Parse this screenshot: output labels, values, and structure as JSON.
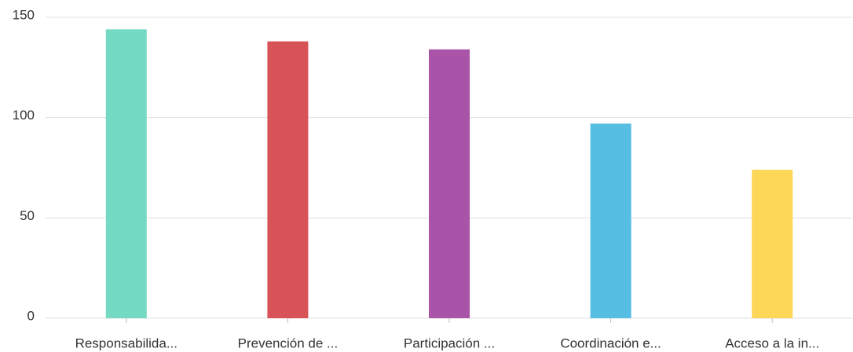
{
  "chart_data": {
    "type": "bar",
    "categories": [
      "Responsabilida...",
      "Prevención de ...",
      "Participación ...",
      "Coordinación e...",
      "Acceso a la in..."
    ],
    "values": [
      144,
      138,
      134,
      97,
      74
    ],
    "colors": [
      "#6dd8c0",
      "#d64a4f",
      "#a44ba3",
      "#4dbae2",
      "#fdd54f"
    ],
    "ylim": [
      0,
      150
    ],
    "yticks": [
      0,
      50,
      100,
      150
    ],
    "grid": true
  }
}
